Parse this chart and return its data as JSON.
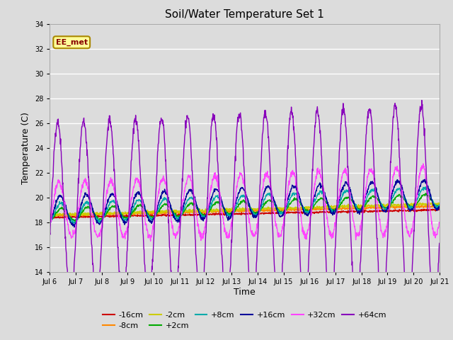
{
  "title": "Soil/Water Temperature Set 1",
  "xlabel": "Time",
  "ylabel": "Temperature (C)",
  "ylim": [
    14,
    34
  ],
  "yticks": [
    14,
    16,
    18,
    20,
    22,
    24,
    26,
    28,
    30,
    32,
    34
  ],
  "x_labels": [
    "Jul 6",
    "Jul 7",
    "Jul 8",
    "Jul 9",
    "Jul 10",
    "Jul 11",
    "Jul 12",
    "Jul 13",
    "Jul 14",
    "Jul 15",
    "Jul 16",
    "Jul 17",
    "Jul 18",
    "Jul 19",
    "Jul 20",
    "Jul 21"
  ],
  "background_color": "#dcdcdc",
  "plot_bg_color": "#dcdcdc",
  "grid_color": "#ffffff",
  "series": [
    {
      "label": "-16cm",
      "color": "#cc0000"
    },
    {
      "label": "-8cm",
      "color": "#ff8800"
    },
    {
      "label": "-2cm",
      "color": "#cccc00"
    },
    {
      "label": "+2cm",
      "color": "#00aa00"
    },
    {
      "label": "+8cm",
      "color": "#00aaaa"
    },
    {
      "label": "+16cm",
      "color": "#000099"
    },
    {
      "label": "+32cm",
      "color": "#ff44ff"
    },
    {
      "label": "+64cm",
      "color": "#8800bb"
    }
  ],
  "watermark": "EE_met",
  "watermark_bg": "#ffff99",
  "watermark_border": "#aa8800"
}
